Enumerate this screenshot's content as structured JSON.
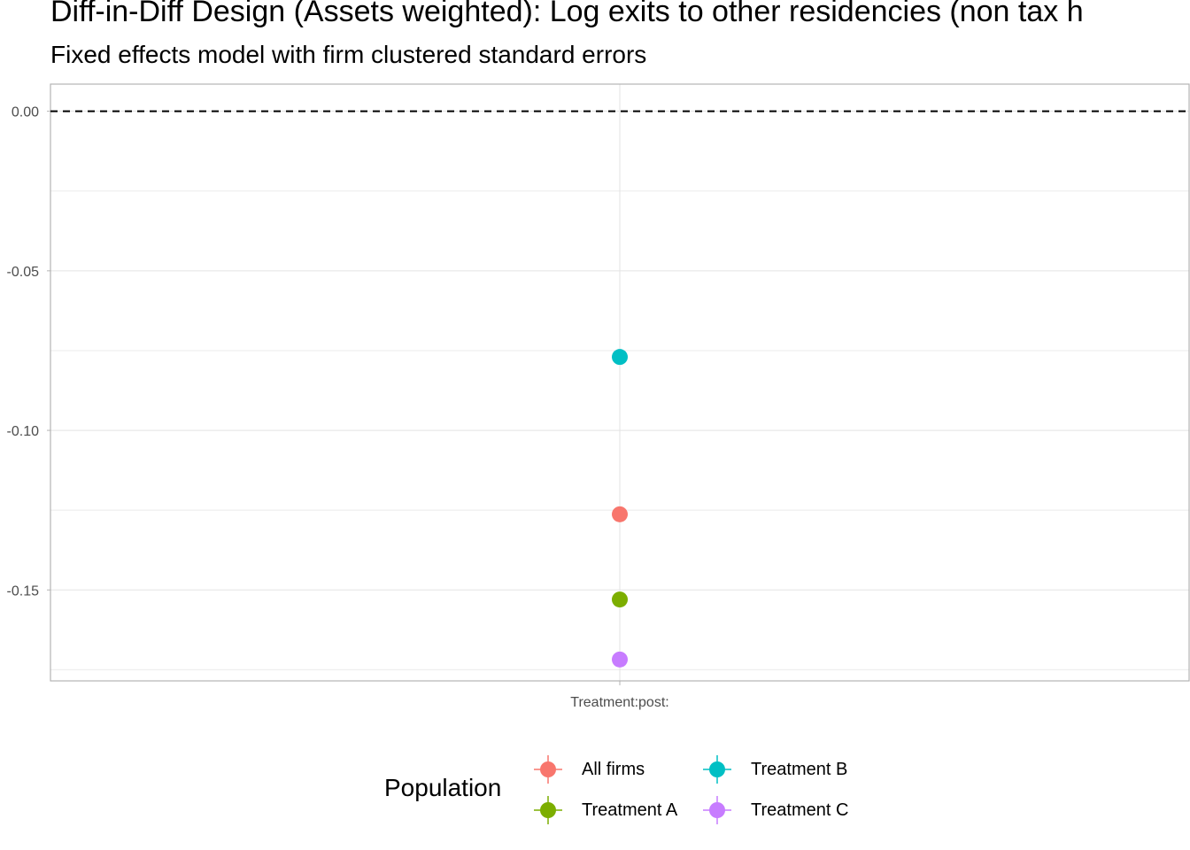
{
  "chart_data": {
    "type": "scatter",
    "title": "Diff-in-Diff Design (Assets weighted): Log exits to other residencies (non tax h",
    "subtitle": "Fixed effects model with firm clustered standard errors",
    "xlabel": "",
    "ylabel": "",
    "categories": [
      "Treatment:post:"
    ],
    "ylim": [
      -0.1785,
      0.0085
    ],
    "y_ticks": [
      0.0,
      -0.05,
      -0.1,
      -0.15
    ],
    "y_tick_labels": [
      "0.00",
      "-0.05",
      "-0.10",
      "-0.15"
    ],
    "y_minor_gridlines": [
      -0.025,
      -0.075,
      -0.125,
      -0.175
    ],
    "reference_line": {
      "y": 0,
      "style": "dashed",
      "color": "#000000"
    },
    "grid": true,
    "legend": {
      "title": "Population",
      "position": "bottom"
    },
    "series": [
      {
        "name": "All firms",
        "color": "#F8766D",
        "values": [
          -0.1263
        ]
      },
      {
        "name": "Treatment A",
        "color": "#7CAE00",
        "values": [
          -0.153
        ]
      },
      {
        "name": "Treatment B",
        "color": "#00BFC4",
        "values": [
          -0.077
        ]
      },
      {
        "name": "Treatment C",
        "color": "#C77CFF",
        "values": [
          -0.1718
        ]
      }
    ]
  }
}
